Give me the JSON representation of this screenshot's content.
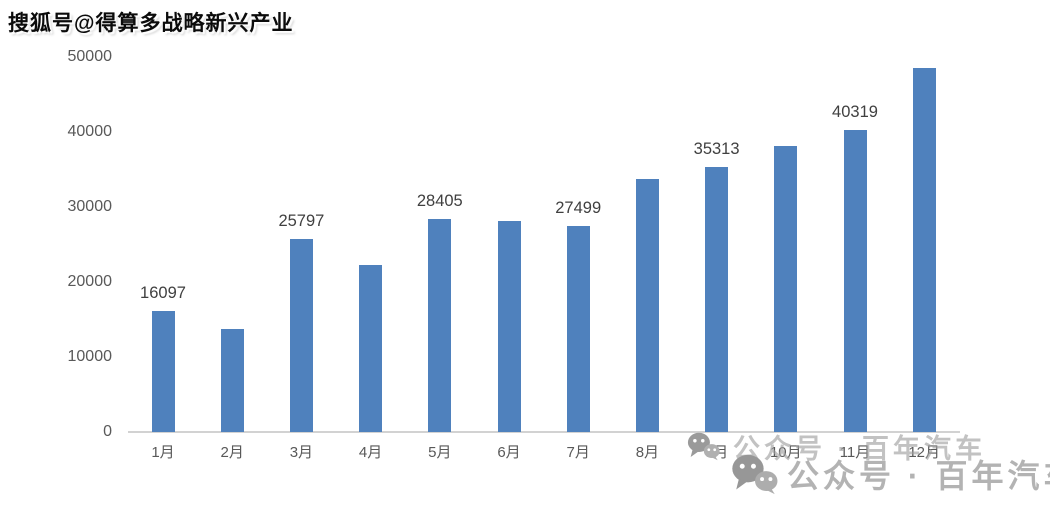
{
  "watermarks": {
    "sohu": "搜狐号@得算多战略新兴产业",
    "wechat_text": "公众号 · 百年汽车"
  },
  "chart_data": {
    "type": "bar",
    "title": "",
    "xlabel": "",
    "ylabel": "",
    "categories": [
      "1月",
      "2月",
      "3月",
      "4月",
      "5月",
      "6月",
      "7月",
      "8月",
      "9月",
      "10月",
      "11月",
      "12月"
    ],
    "values": [
      16097,
      13700,
      25797,
      22300,
      28405,
      28100,
      27499,
      33800,
      35313,
      38200,
      40319,
      48600
    ],
    "data_labels": [
      "16097",
      null,
      "25797",
      null,
      "28405",
      null,
      "27499",
      null,
      "35313",
      null,
      "40319",
      null
    ],
    "ylim": [
      0,
      50000
    ],
    "y_ticks": [
      0,
      10000,
      20000,
      30000,
      40000,
      50000
    ],
    "grid": false,
    "legend": false,
    "bar_color": "#4F81BD",
    "axis_line_color": "#d2d2d2",
    "axis_text_color": "#595959",
    "data_label_color": "#404040"
  }
}
